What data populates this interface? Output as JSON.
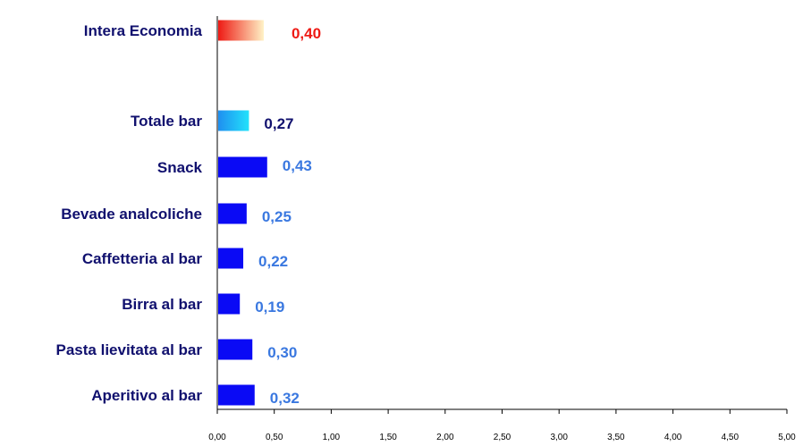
{
  "chart_data": {
    "type": "bar",
    "orientation": "horizontal",
    "categories": [
      "Intera Economia",
      "Totale bar",
      "Snack",
      "Bevade analcoliche",
      "Caffetteria al bar",
      "Birra al bar",
      "Pasta lievitata al bar",
      "Aperitivo al bar"
    ],
    "values": [
      0.4,
      0.27,
      0.43,
      0.25,
      0.22,
      0.19,
      0.3,
      0.32
    ],
    "value_labels": [
      "0,40",
      "0,27",
      "0,43",
      "0,25",
      "0,22",
      "0,19",
      "0,30",
      "0,32"
    ],
    "xlim": [
      0,
      5
    ],
    "x_ticks": [
      "0,00",
      "0,50",
      "1,00",
      "1,50",
      "2,00",
      "2,50",
      "3,00",
      "3,50",
      "4,00",
      "4,50",
      "5,00"
    ],
    "title": "",
    "xlabel": "",
    "ylabel": "",
    "grid": false,
    "legend": "none",
    "colors": {
      "category_label": "#10106e",
      "bar_default": "#0a0af5",
      "bar_total_gradient": [
        "#1f8ff0",
        "#22e2fb"
      ],
      "bar_economy_gradient": [
        "#ee1a14",
        "#fff2c6"
      ],
      "label_default": "#3a78e0",
      "label_total": "#10106e",
      "label_economy": "#ee1a14",
      "axis": "#000000"
    }
  }
}
